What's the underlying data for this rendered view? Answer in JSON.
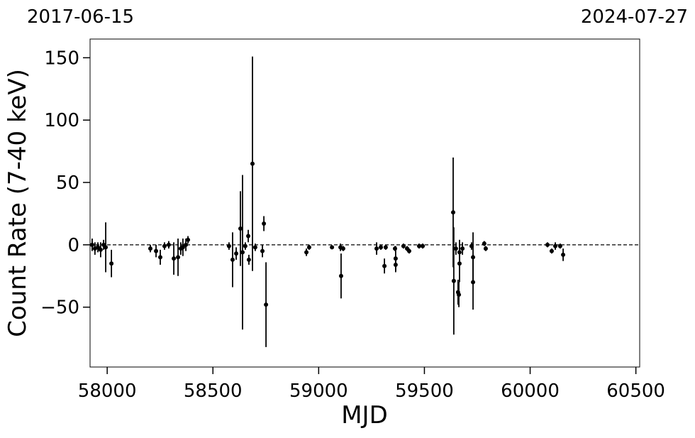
{
  "chart_data": {
    "type": "errorbar",
    "ylabel": "Count Rate (7-40 keV)",
    "xlabel": "MJD",
    "annotations": [
      "2017-06-15",
      "2024-07-27"
    ],
    "xlim": [
      57919,
      60518
    ],
    "ylim": [
      -98,
      165
    ],
    "xticks": [
      58000,
      58500,
      59000,
      59500,
      60000,
      60500
    ],
    "yticks": [
      {
        "value": -50,
        "label": "−50"
      },
      0,
      50,
      100,
      150
    ],
    "hline": 0,
    "color": "#000000",
    "x": [
      57929,
      57942,
      57956,
      57969,
      57983,
      57993,
      58020,
      58204,
      58231,
      58251,
      58271,
      58291,
      58315,
      58335,
      58348,
      58358,
      58372,
      58382,
      58576,
      58593,
      58610,
      58630,
      58640,
      58653,
      58667,
      58670,
      58687,
      58700,
      58734,
      58741,
      58751,
      58942,
      58955,
      59063,
      59103,
      59106,
      59116,
      59274,
      59294,
      59311,
      59317,
      59361,
      59364,
      59364,
      59401,
      59418,
      59428,
      59475,
      59492,
      59636,
      59639,
      59649,
      59659,
      59663,
      59666,
      59666,
      59680,
      59723,
      59730,
      59730,
      59783,
      59790,
      60082,
      60102,
      60119,
      60142,
      60156
    ],
    "values": [
      0,
      -3,
      -2,
      -4,
      0,
      -2,
      -15,
      -3,
      -5,
      -10,
      -1,
      0,
      -11,
      -10,
      -3,
      -2,
      0,
      4,
      -1,
      -12,
      -7,
      13,
      -6,
      -1,
      7,
      -12,
      65,
      -2,
      -5,
      17,
      -48,
      -6,
      -2,
      -2,
      -2,
      -25,
      -3,
      -3,
      -2,
      -17,
      -2,
      -3,
      -11,
      -16,
      -1,
      -3,
      -5,
      -1,
      -1,
      26,
      -29,
      -3,
      -38,
      -40,
      -15,
      -6,
      -3,
      -1,
      -10,
      -30,
      1,
      -3,
      0,
      -5,
      -1,
      -1,
      -8
    ],
    "errors": [
      5,
      5,
      4,
      6,
      4,
      20,
      11,
      3,
      5,
      6,
      3,
      3,
      13,
      15,
      5,
      7,
      5,
      3,
      3,
      22,
      5,
      30,
      62,
      3,
      5,
      4,
      86,
      3,
      5,
      6,
      34,
      3,
      2,
      1,
      3,
      18,
      2,
      5,
      2,
      6,
      2,
      2,
      10,
      6,
      2,
      2,
      2,
      2,
      2,
      44,
      43,
      5,
      10,
      10,
      15,
      10,
      5,
      3,
      20,
      22,
      2,
      2,
      2,
      2,
      3,
      2,
      5
    ]
  }
}
